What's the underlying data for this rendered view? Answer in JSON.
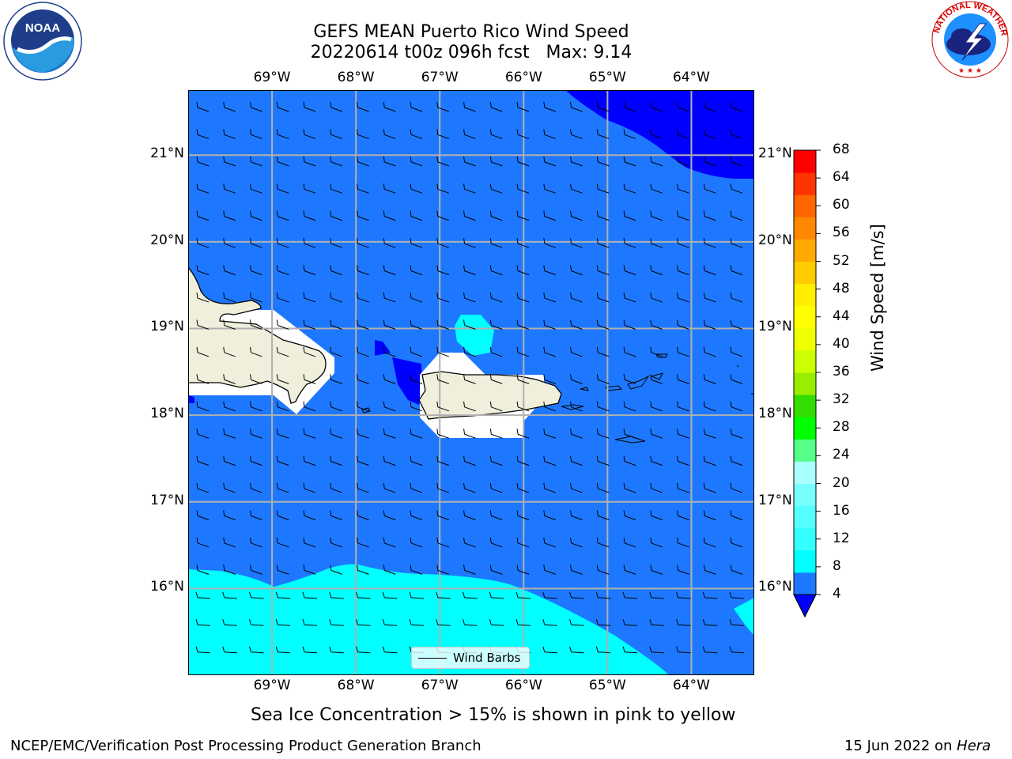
{
  "title": {
    "line1": "GEFS MEAN Puerto Rico Wind Speed",
    "line2": "20220614 t00z 096h fcst   Max: 9.14"
  },
  "axes": {
    "lon_ticks": [
      "69°W",
      "68°W",
      "67°W",
      "66°W",
      "65°W",
      "64°W"
    ],
    "lat_ticks": [
      "21°N",
      "20°N",
      "19°N",
      "18°N",
      "17°N",
      "16°N"
    ],
    "lon_range": [
      -70,
      -63.25
    ],
    "lat_range": [
      15,
      21.75
    ],
    "grid": true
  },
  "legend": {
    "label": "Wind Barbs"
  },
  "colorbar": {
    "label": "Wind Speed [m/s]",
    "ticks": [
      "68",
      "64",
      "60",
      "56",
      "52",
      "48",
      "44",
      "40",
      "36",
      "32",
      "28",
      "24",
      "20",
      "16",
      "12",
      "8",
      "4"
    ],
    "levels": [
      4,
      8,
      10,
      12,
      14,
      16,
      18,
      20,
      24,
      28,
      32,
      36,
      40,
      44,
      48,
      52,
      56,
      60,
      64,
      68
    ],
    "colors": [
      "#1e78ff",
      "#00ffff",
      "#33ffff",
      "#55ffff",
      "#77ffff",
      "#aaffff",
      "#55ff88",
      "#00ff00",
      "#33dd00",
      "#99ee00",
      "#ccff00",
      "#eeff00",
      "#ffff00",
      "#ffee00",
      "#ffcc00",
      "#ffaa00",
      "#ff8800",
      "#ff6600",
      "#ff3300",
      "#ff0000"
    ],
    "under_color": "#0000ff"
  },
  "wind_speed_field": {
    "dominant_range_m_s": "4-8",
    "southern_band_range_m_s": "8-12",
    "northeast_corner_range_m_s": "<4",
    "max": 9.14
  },
  "caption": "Sea Ice Concentration > 15% is shown in pink to yellow",
  "footer": {
    "left": "NCEP/EMC/Verification Post Processing Product Generation Branch",
    "right_prefix": "15 Jun 2022 on ",
    "right_host": "Hera"
  },
  "logos": {
    "left": {
      "icon": "noaa-logo",
      "text": "NOAA"
    },
    "right": {
      "icon": "nws-logo",
      "text": "NATIONAL WEATHER SERVICE"
    }
  }
}
